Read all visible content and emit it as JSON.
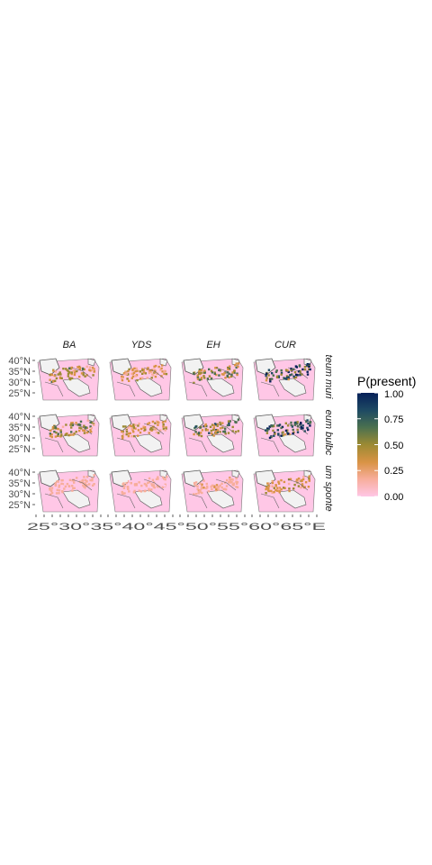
{
  "chart_data": {
    "type": "heatmap",
    "title": "",
    "columns": [
      "BA",
      "YDS",
      "EH",
      "CUR"
    ],
    "rows": [
      "teum muri",
      "eum bulbc",
      "um sponte"
    ],
    "y_ticks": [
      "40°N",
      "35°N",
      "30°N",
      "25°N"
    ],
    "x_tick_text": "25°E30°E35°E40°E45°E50°E55°E60°E65°E",
    "x_ticks_visible": "25°30°35°40°45°50°55°60°65°E",
    "legend": {
      "title": "P(present)",
      "breaks": [
        "1.00",
        "0.75",
        "0.50",
        "0.25",
        "0.00"
      ],
      "break_values": [
        1.0,
        0.75,
        0.5,
        0.25,
        0.0
      ],
      "colors": [
        "#ffc7e6",
        "#f7ad9a",
        "#d99345",
        "#9c8a33",
        "#4a7050",
        "#1e4a63",
        "#062058"
      ]
    },
    "panel_intensity": [
      [
        0.35,
        0.28,
        0.42,
        0.62
      ],
      [
        0.38,
        0.3,
        0.45,
        0.6
      ],
      [
        0.12,
        0.1,
        0.15,
        0.28
      ]
    ],
    "colors": {
      "land": "#ffc7e6",
      "sea": "#f2f2f2",
      "border": "#555555"
    }
  }
}
